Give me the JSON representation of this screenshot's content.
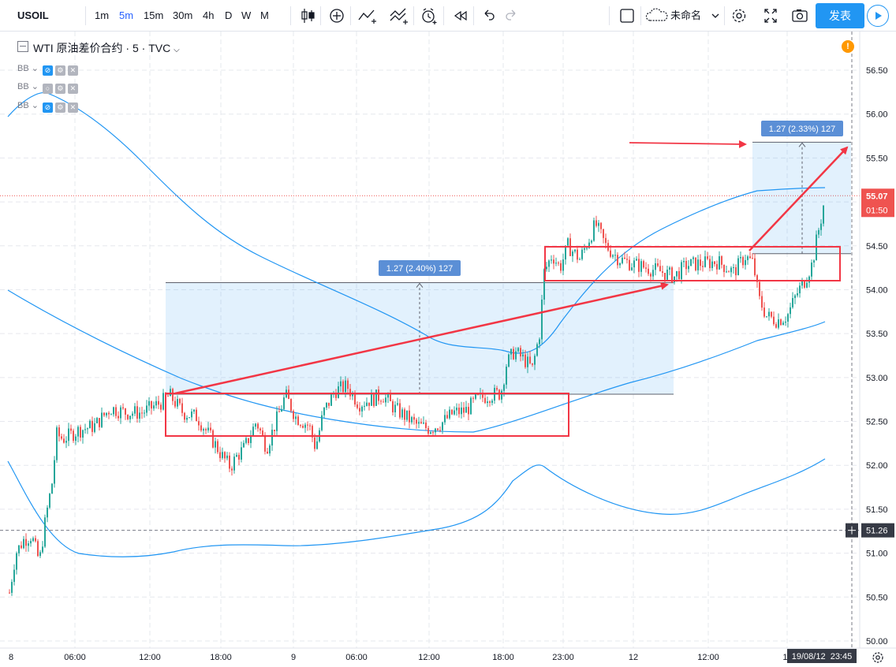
{
  "toolbar": {
    "symbol": "USOIL",
    "intervals": [
      "1m",
      "5m",
      "15m",
      "30m",
      "4h",
      "D",
      "W",
      "M"
    ],
    "active_interval": "5m",
    "layout_name": "未命名",
    "publish_label": "发表"
  },
  "legend": {
    "title": "WTI 原油差价合约 · 5 · TVC",
    "indicators": [
      "BB",
      "BB",
      "BB"
    ]
  },
  "price_axis": {
    "ticks": [
      "56.50",
      "56.00",
      "55.50",
      "55.00",
      "54.50",
      "54.00",
      "53.50",
      "53.00",
      "52.50",
      "52.00",
      "51.50",
      "51.00",
      "50.50",
      "50.00"
    ],
    "last_price": "55.07",
    "countdown": "01:50",
    "crosshair_price": "51.26"
  },
  "time_axis": {
    "ticks": [
      "8",
      "06:00",
      "12:00",
      "18:00",
      "9",
      "06:00",
      "12:00",
      "18:00",
      "23:00",
      "12",
      "12:00",
      "18:"
    ],
    "crosshair_time": "19/08/12  23:45"
  },
  "measure_left": {
    "label": "1.27 (2.40%) 127"
  },
  "measure_right": {
    "label": "1.27 (2.33%) 127"
  },
  "colors": {
    "up": "#26a69a",
    "down": "#ef5350",
    "bb": "#2196f3",
    "annotation": "#f23645",
    "accent": "#2196f3"
  }
}
